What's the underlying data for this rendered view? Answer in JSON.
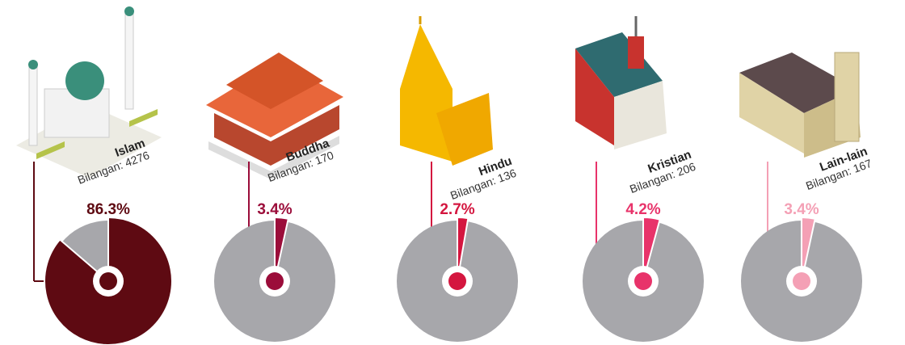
{
  "chart_data": {
    "type": "pie-gauge",
    "categories": [
      "Islam",
      "Buddha",
      "Hindu",
      "Kristian",
      "Lain-lain"
    ],
    "count_labels": [
      "Bilangan: 4276",
      "Bilangan: 170",
      "Bilangan: 136",
      "Bilangan: 206",
      "Bilangan: 167"
    ],
    "values": [
      86.3,
      3.4,
      2.7,
      4.2,
      3.4
    ],
    "value_labels": [
      "86.3%",
      "3.4%",
      "2.7%",
      "4.2%",
      "3.4%"
    ],
    "colors": [
      "#5e0a12",
      "#9b0d3a",
      "#d4163f",
      "#e8336a",
      "#f4a0b5"
    ],
    "base_color": "#a7a7ab"
  }
}
